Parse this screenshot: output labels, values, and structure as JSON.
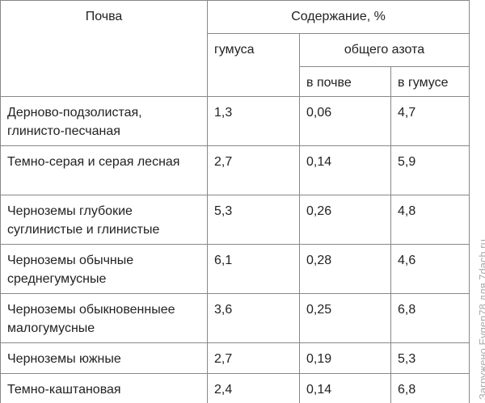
{
  "table": {
    "header": {
      "soil": "Почва",
      "content": "Содержание, %",
      "humus": "гумуса",
      "nitrogen": "общего азота",
      "in_soil": "в почве",
      "in_humus": "в гумусе"
    },
    "rows": [
      [
        "Дерново-подзолистая, глинисто-песчаная",
        "1,3",
        "0,06",
        "4,7"
      ],
      [
        "Темно-серая и серая лесная",
        "2,7",
        "0,14",
        "5,9"
      ],
      [
        "Черноземы глубокие суглинистые и глинистые",
        "5,3",
        "0,26",
        "4,8"
      ],
      [
        "Черноземы обычные среднегумусные",
        "6,1",
        "0,28",
        "4,6"
      ],
      [
        "Черноземы обыкновенныее малогумусные",
        "3,6",
        "0,25",
        "6,8"
      ],
      [
        "Черноземы южные",
        "2,7",
        "0,19",
        "5,3"
      ],
      [
        "Темно-каштановая",
        "2,4",
        "0,14",
        "6,8"
      ]
    ]
  },
  "watermark": "Загружено Evgen78 для 7dach.ru"
}
